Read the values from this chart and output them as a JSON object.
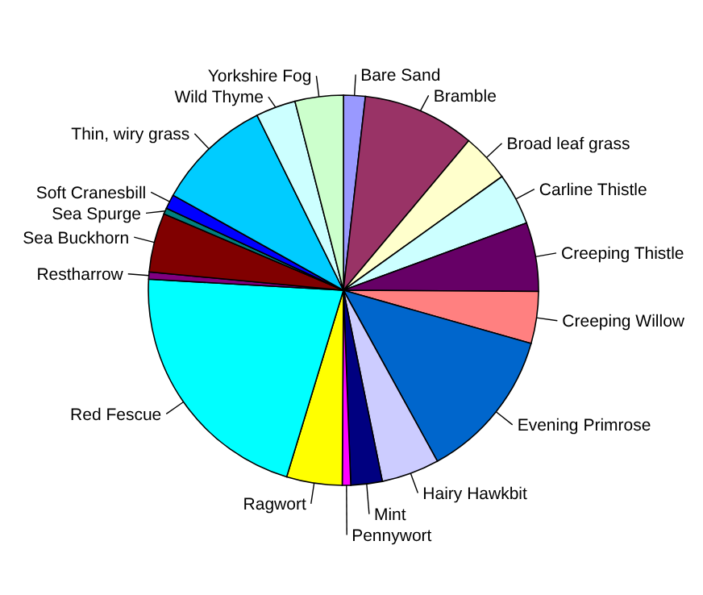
{
  "chart_data": {
    "type": "pie",
    "categories": [
      "Bare Sand",
      "Bramble",
      "Broad leaf grass",
      "Carline Thistle",
      "Creeping Thistle",
      "Creeping Willow",
      "Evening Primrose",
      "Hairy Hawkbit",
      "Mint",
      "Pennywort",
      "Ragwort",
      "Red Fescue",
      "Restharrow",
      "Sea Buckhorn",
      "Sea Spurge",
      "Soft Cranesbill",
      "Thin, wiry grass",
      "Wild Thyme",
      "Yorkshire Fog"
    ],
    "values": [
      1.8,
      9.3,
      4.0,
      4.3,
      5.7,
      4.3,
      12.6,
      4.8,
      2.6,
      0.7,
      4.6,
      21.2,
      0.6,
      4.9,
      0.5,
      1.2,
      9.6,
      3.3,
      4.0
    ],
    "colors": [
      "#9999ff",
      "#993366",
      "#ffffcc",
      "#ccffff",
      "#660066",
      "#ff8080",
      "#0066cc",
      "#ccccff",
      "#000080",
      "#ff00ff",
      "#ffff00",
      "#00ffff",
      "#800080",
      "#800000",
      "#008080",
      "#0000ff",
      "#00ccff",
      "#ccffff",
      "#ccffcc"
    ]
  }
}
